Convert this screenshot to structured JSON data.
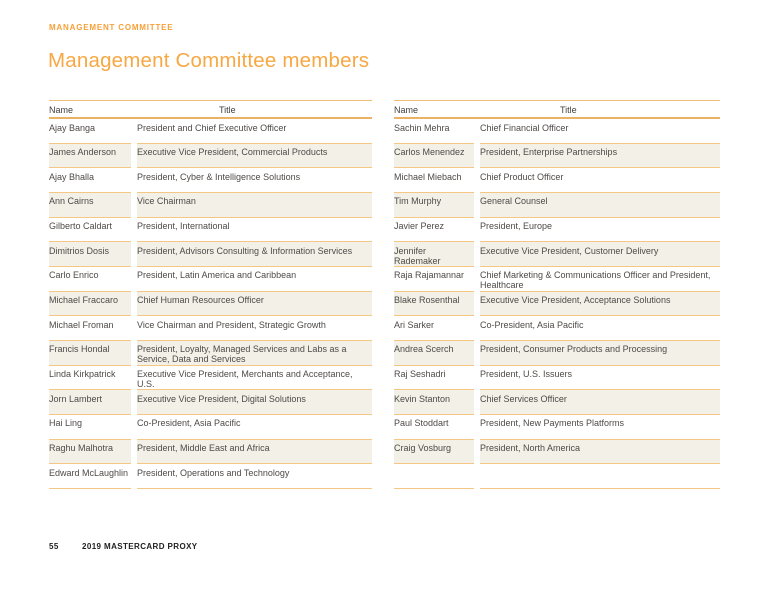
{
  "page": {
    "eyebrow": "MANAGEMENT COMMITTEE",
    "title": "Management Committee members",
    "accent_color": "#F7A843",
    "row_border_color": "#F4C884",
    "header_border_color": "#EBB264",
    "shaded_row_color": "#F3F0E8",
    "body_text_color": "#4E4A47"
  },
  "footer": {
    "page_number": "55",
    "label": "2019 MASTERCARD PROXY"
  },
  "tables": [
    {
      "columns": {
        "name": "Name",
        "title": "Title"
      },
      "rows": [
        {
          "name": "Ajay Banga",
          "title": "President and Chief Executive Officer"
        },
        {
          "name": "James Anderson",
          "title": "Executive Vice President, Commercial Products"
        },
        {
          "name": "Ajay Bhalla",
          "title": "President, Cyber & Intelligence Solutions"
        },
        {
          "name": "Ann Cairns",
          "title": "Vice Chairman"
        },
        {
          "name": "Gilberto Caldart",
          "title": "President, International"
        },
        {
          "name": "Dimitrios Dosis",
          "title": "President, Advisors Consulting & Information Services"
        },
        {
          "name": "Carlo Enrico",
          "title": "President, Latin America and Caribbean"
        },
        {
          "name": "Michael Fraccaro",
          "title": "Chief Human Resources Officer"
        },
        {
          "name": "Michael Froman",
          "title": "Vice Chairman and President, Strategic Growth"
        },
        {
          "name": "Francis Hondal",
          "title": "President, Loyalty, Managed Services and Labs as a Service, Data and Services"
        },
        {
          "name": "Linda Kirkpatrick",
          "title": "Executive Vice President, Merchants and Acceptance, U.S."
        },
        {
          "name": "Jorn Lambert",
          "title": "Executive Vice President, Digital Solutions"
        },
        {
          "name": "Hai Ling",
          "title": "Co-President, Asia Pacific"
        },
        {
          "name": "Raghu Malhotra",
          "title": "President, Middle East and Africa"
        },
        {
          "name": "Edward McLaughlin",
          "title": "President, Operations and Technology"
        }
      ]
    },
    {
      "columns": {
        "name": "Name",
        "title": "Title"
      },
      "rows": [
        {
          "name": "Sachin Mehra",
          "title": "Chief Financial Officer"
        },
        {
          "name": "Carlos Menendez",
          "title": "President, Enterprise Partnerships"
        },
        {
          "name": "Michael Miebach",
          "title": "Chief Product Officer"
        },
        {
          "name": "Tim Murphy",
          "title": "General Counsel"
        },
        {
          "name": "Javier Perez",
          "title": "President, Europe"
        },
        {
          "name": "Jennifer Rademaker",
          "title": "Executive Vice President, Customer Delivery"
        },
        {
          "name": "Raja Rajamannar",
          "title": "Chief Marketing & Communications Officer and President, Healthcare"
        },
        {
          "name": "Blake Rosenthal",
          "title": "Executive Vice President, Acceptance Solutions"
        },
        {
          "name": "Ari Sarker",
          "title": "Co-President, Asia Pacific"
        },
        {
          "name": "Andrea Scerch",
          "title": "President, Consumer Products and Processing"
        },
        {
          "name": "Raj Seshadri",
          "title": "President, U.S. Issuers"
        },
        {
          "name": "Kevin Stanton",
          "title": "Chief Services Officer"
        },
        {
          "name": "Paul Stoddart",
          "title": "President, New Payments Platforms"
        },
        {
          "name": "Craig Vosburg",
          "title": "President, North America"
        }
      ]
    }
  ]
}
